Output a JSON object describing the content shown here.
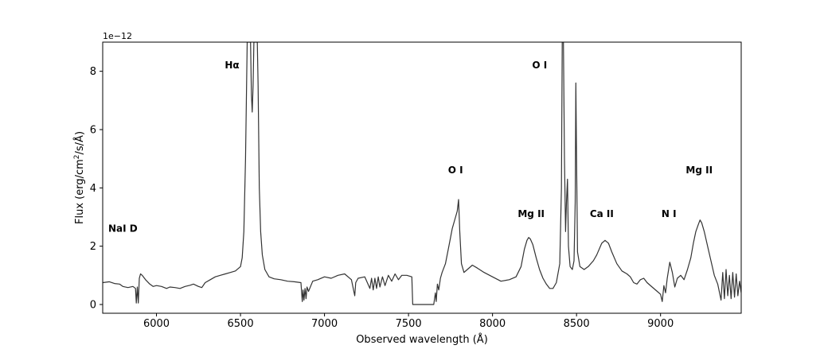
{
  "chart_data": {
    "type": "line",
    "title": "",
    "xlabel": "Observed wavelength (Å)",
    "ylabel_parts": {
      "before": "Flux (erg/cm",
      "sup": "2",
      "after": "/s/Å)"
    },
    "y_offset_text": "1e−12",
    "xlim": [
      5680,
      9480
    ],
    "ylim": [
      -0.3,
      9.0
    ],
    "xticks": [
      {
        "value": 6000,
        "label": "6000"
      },
      {
        "value": 6500,
        "label": "6500"
      },
      {
        "value": 7000,
        "label": "7000"
      },
      {
        "value": 7500,
        "label": "7500"
      },
      {
        "value": 8000,
        "label": "8000"
      },
      {
        "value": 8500,
        "label": "8500"
      },
      {
        "value": 9000,
        "label": "9000"
      }
    ],
    "yticks": [
      {
        "value": 0,
        "label": "0"
      },
      {
        "value": 2,
        "label": "2"
      },
      {
        "value": 4,
        "label": "4"
      },
      {
        "value": 6,
        "label": "6"
      },
      {
        "value": 8,
        "label": "8"
      }
    ],
    "grid": false,
    "color": "#333333",
    "annotations": [
      {
        "text": "NaI D",
        "x": 5800,
        "y": 2.5
      },
      {
        "text": "Hα",
        "x": 6450,
        "y": 8.1
      },
      {
        "text": "O I",
        "x": 7780,
        "y": 4.5
      },
      {
        "text": "O I",
        "x": 8280,
        "y": 8.1
      },
      {
        "text": "Mg II",
        "x": 8230,
        "y": 3.0
      },
      {
        "text": "Ca II",
        "x": 8650,
        "y": 3.0
      },
      {
        "text": "N I",
        "x": 9050,
        "y": 3.0
      },
      {
        "text": "Mg II",
        "x": 9230,
        "y": 4.5
      }
    ],
    "series": [
      {
        "values": [
          [
            5680,
            0.75
          ],
          [
            5720,
            0.78
          ],
          [
            5750,
            0.72
          ],
          [
            5780,
            0.7
          ],
          [
            5800,
            0.62
          ],
          [
            5830,
            0.58
          ],
          [
            5860,
            0.62
          ],
          [
            5875,
            0.55
          ],
          [
            5880,
            0.05
          ],
          [
            5886,
            0.6
          ],
          [
            5892,
            0.05
          ],
          [
            5898,
            0.9
          ],
          [
            5905,
            1.05
          ],
          [
            5915,
            1.0
          ],
          [
            5935,
            0.85
          ],
          [
            5960,
            0.7
          ],
          [
            5980,
            0.62
          ],
          [
            6000,
            0.65
          ],
          [
            6030,
            0.62
          ],
          [
            6060,
            0.55
          ],
          [
            6080,
            0.6
          ],
          [
            6110,
            0.58
          ],
          [
            6140,
            0.55
          ],
          [
            6170,
            0.62
          ],
          [
            6200,
            0.66
          ],
          [
            6220,
            0.7
          ],
          [
            6250,
            0.62
          ],
          [
            6270,
            0.58
          ],
          [
            6290,
            0.75
          ],
          [
            6320,
            0.85
          ],
          [
            6350,
            0.95
          ],
          [
            6380,
            1.0
          ],
          [
            6410,
            1.05
          ],
          [
            6440,
            1.1
          ],
          [
            6470,
            1.15
          ],
          [
            6500,
            1.3
          ],
          [
            6510,
            1.6
          ],
          [
            6520,
            2.5
          ],
          [
            6530,
            5.0
          ],
          [
            6540,
            9.0
          ],
          [
            6560,
            9.0
          ],
          [
            6565,
            7.2
          ],
          [
            6570,
            6.6
          ],
          [
            6575,
            7.5
          ],
          [
            6580,
            9.0
          ],
          [
            6600,
            9.0
          ],
          [
            6605,
            7.5
          ],
          [
            6612,
            4.0
          ],
          [
            6620,
            2.5
          ],
          [
            6630,
            1.7
          ],
          [
            6645,
            1.2
          ],
          [
            6670,
            0.95
          ],
          [
            6700,
            0.88
          ],
          [
            6740,
            0.85
          ],
          [
            6780,
            0.8
          ],
          [
            6820,
            0.78
          ],
          [
            6860,
            0.75
          ],
          [
            6868,
            0.1
          ],
          [
            6872,
            0.5
          ],
          [
            6878,
            0.15
          ],
          [
            6884,
            0.55
          ],
          [
            6890,
            0.2
          ],
          [
            6896,
            0.6
          ],
          [
            6905,
            0.45
          ],
          [
            6930,
            0.8
          ],
          [
            6960,
            0.85
          ],
          [
            7000,
            0.95
          ],
          [
            7040,
            0.9
          ],
          [
            7080,
            1.0
          ],
          [
            7120,
            1.05
          ],
          [
            7160,
            0.85
          ],
          [
            7180,
            0.3
          ],
          [
            7186,
            0.75
          ],
          [
            7200,
            0.9
          ],
          [
            7240,
            0.95
          ],
          [
            7270,
            0.55
          ],
          [
            7280,
            0.9
          ],
          [
            7290,
            0.5
          ],
          [
            7300,
            0.9
          ],
          [
            7310,
            0.55
          ],
          [
            7320,
            0.95
          ],
          [
            7330,
            0.6
          ],
          [
            7345,
            0.95
          ],
          [
            7360,
            0.65
          ],
          [
            7380,
            1.0
          ],
          [
            7400,
            0.8
          ],
          [
            7420,
            1.05
          ],
          [
            7440,
            0.85
          ],
          [
            7460,
            1.0
          ],
          [
            7490,
            1.0
          ],
          [
            7520,
            0.95
          ],
          [
            7525,
            0.0
          ],
          [
            7650,
            0.0
          ],
          [
            7660,
            0.4
          ],
          [
            7665,
            0.1
          ],
          [
            7672,
            0.7
          ],
          [
            7680,
            0.5
          ],
          [
            7690,
            0.9
          ],
          [
            7700,
            1.1
          ],
          [
            7720,
            1.4
          ],
          [
            7740,
            2.0
          ],
          [
            7760,
            2.6
          ],
          [
            7780,
            3.0
          ],
          [
            7790,
            3.2
          ],
          [
            7798,
            3.6
          ],
          [
            7805,
            2.5
          ],
          [
            7815,
            1.4
          ],
          [
            7830,
            1.1
          ],
          [
            7850,
            1.2
          ],
          [
            7880,
            1.35
          ],
          [
            7910,
            1.25
          ],
          [
            7950,
            1.1
          ],
          [
            8000,
            0.95
          ],
          [
            8050,
            0.8
          ],
          [
            8100,
            0.85
          ],
          [
            8140,
            0.95
          ],
          [
            8170,
            1.3
          ],
          [
            8190,
            1.9
          ],
          [
            8205,
            2.2
          ],
          [
            8215,
            2.3
          ],
          [
            8225,
            2.25
          ],
          [
            8240,
            2.05
          ],
          [
            8260,
            1.6
          ],
          [
            8280,
            1.2
          ],
          [
            8300,
            0.9
          ],
          [
            8320,
            0.7
          ],
          [
            8340,
            0.55
          ],
          [
            8360,
            0.55
          ],
          [
            8380,
            0.75
          ],
          [
            8400,
            1.4
          ],
          [
            8410,
            4.0
          ],
          [
            8415,
            9.0
          ],
          [
            8422,
            9.0
          ],
          [
            8428,
            5.0
          ],
          [
            8435,
            2.5
          ],
          [
            8440,
            3.5
          ],
          [
            8446,
            4.3
          ],
          [
            8452,
            2.0
          ],
          [
            8462,
            1.3
          ],
          [
            8475,
            1.2
          ],
          [
            8485,
            1.5
          ],
          [
            8492,
            3.5
          ],
          [
            8496,
            7.6
          ],
          [
            8500,
            5.0
          ],
          [
            8506,
            1.8
          ],
          [
            8520,
            1.3
          ],
          [
            8545,
            1.2
          ],
          [
            8570,
            1.3
          ],
          [
            8600,
            1.5
          ],
          [
            8620,
            1.7
          ],
          [
            8650,
            2.1
          ],
          [
            8670,
            2.2
          ],
          [
            8690,
            2.1
          ],
          [
            8710,
            1.8
          ],
          [
            8740,
            1.4
          ],
          [
            8770,
            1.15
          ],
          [
            8800,
            1.05
          ],
          [
            8820,
            0.95
          ],
          [
            8840,
            0.75
          ],
          [
            8860,
            0.7
          ],
          [
            8880,
            0.85
          ],
          [
            8900,
            0.9
          ],
          [
            8920,
            0.75
          ],
          [
            8950,
            0.6
          ],
          [
            8980,
            0.45
          ],
          [
            9000,
            0.35
          ],
          [
            9010,
            0.1
          ],
          [
            9020,
            0.65
          ],
          [
            9030,
            0.4
          ],
          [
            9040,
            0.9
          ],
          [
            9055,
            1.45
          ],
          [
            9070,
            1.1
          ],
          [
            9085,
            0.6
          ],
          [
            9100,
            0.9
          ],
          [
            9120,
            1.0
          ],
          [
            9140,
            0.85
          ],
          [
            9160,
            1.2
          ],
          [
            9180,
            1.6
          ],
          [
            9195,
            2.1
          ],
          [
            9210,
            2.5
          ],
          [
            9225,
            2.75
          ],
          [
            9235,
            2.9
          ],
          [
            9245,
            2.8
          ],
          [
            9260,
            2.5
          ],
          [
            9280,
            2.0
          ],
          [
            9300,
            1.5
          ],
          [
            9320,
            1.0
          ],
          [
            9340,
            0.7
          ],
          [
            9360,
            0.15
          ],
          [
            9370,
            1.1
          ],
          [
            9380,
            0.2
          ],
          [
            9390,
            1.2
          ],
          [
            9400,
            0.3
          ],
          [
            9410,
            1.0
          ],
          [
            9420,
            0.2
          ],
          [
            9430,
            1.1
          ],
          [
            9440,
            0.25
          ],
          [
            9450,
            1.05
          ],
          [
            9460,
            0.3
          ],
          [
            9470,
            0.8
          ],
          [
            9480,
            0.4
          ]
        ]
      }
    ]
  }
}
